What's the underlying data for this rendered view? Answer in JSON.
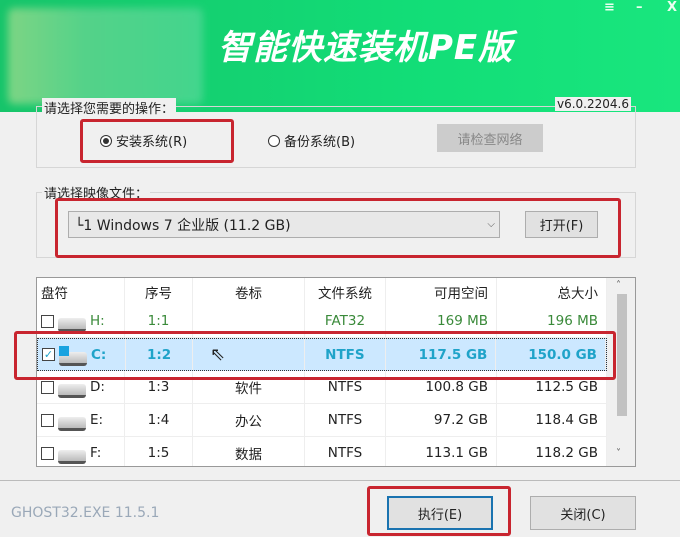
{
  "header": {
    "title": "智能快速装机PE版",
    "window_controls": [
      {
        "icon": "menu-icon",
        "glyph": "≡"
      },
      {
        "icon": "minimize-icon",
        "glyph": "–"
      },
      {
        "icon": "close-icon",
        "glyph": "X"
      }
    ]
  },
  "operation": {
    "label": "请选择您需要的操作：",
    "version": "v6.0.2204.6",
    "install_label": "安装系统(R)",
    "install_selected": true,
    "backup_label": "备份系统(B)",
    "backup_selected": false,
    "network_button": "请检查网络"
  },
  "image": {
    "label": "请选择映像文件：",
    "selected": "└1 Windows 7 企业版 (11.2 GB)",
    "open_button": "打开(F)"
  },
  "table": {
    "columns": [
      "盘符",
      "序号",
      "卷标",
      "文件系统",
      "可用空间",
      "总大小"
    ],
    "rows": [
      {
        "checked": false,
        "drive": "H:",
        "index": "1:1",
        "label": "",
        "fs": "FAT32",
        "free": "169 MB",
        "total": "196 MB",
        "style": "green"
      },
      {
        "checked": true,
        "drive": "C:",
        "index": "1:2",
        "label": "",
        "fs": "NTFS",
        "free": "117.5 GB",
        "total": "150.0 GB",
        "style": "selected"
      },
      {
        "checked": false,
        "drive": "D:",
        "index": "1:3",
        "label": "软件",
        "fs": "NTFS",
        "free": "100.8 GB",
        "total": "112.5 GB",
        "style": "normal"
      },
      {
        "checked": false,
        "drive": "E:",
        "index": "1:4",
        "label": "办公",
        "fs": "NTFS",
        "free": "97.2 GB",
        "total": "118.4 GB",
        "style": "normal"
      },
      {
        "checked": false,
        "drive": "F:",
        "index": "1:5",
        "label": "数据",
        "fs": "NTFS",
        "free": "113.1 GB",
        "total": "118.2 GB",
        "style": "normal"
      }
    ]
  },
  "footer": {
    "ghost_version": "GHOST32.EXE 11.5.1",
    "execute_button": "执行(E)",
    "close_button": "关闭(C)"
  },
  "colors": {
    "header_green": "#14dd77",
    "highlight": "#c8252f",
    "selected_row": "#cce8ff"
  }
}
